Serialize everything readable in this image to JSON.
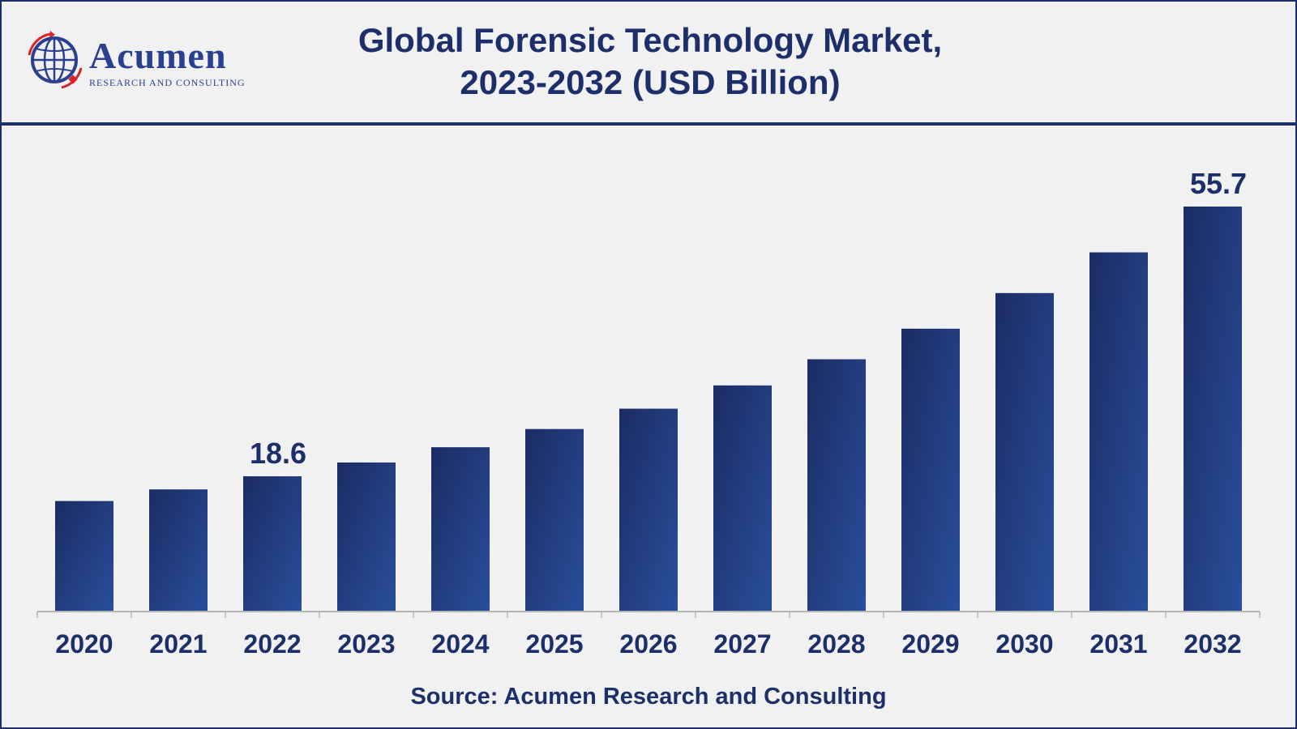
{
  "header": {
    "logo": {
      "name": "Acumen",
      "tagline": "RESEARCH AND CONSULTING",
      "icon": "globe-arrows-logo-icon"
    },
    "title_line1": "Global Forensic Technology Market,",
    "title_line2": "2023-2032 (USD Billion)"
  },
  "source": "Source: Acumen Research and Consulting",
  "colors": {
    "bar_top": "#1b2c63",
    "bar_bottom": "#2a4e9c",
    "text": "#1c2f6b",
    "background": "#f1f1f1",
    "axis": "#b5b5b5"
  },
  "chart_data": {
    "type": "bar",
    "title": "Global Forensic Technology Market, 2023-2032 (USD Billion)",
    "xlabel": "",
    "ylabel": "",
    "categories": [
      "2020",
      "2021",
      "2022",
      "2023",
      "2024",
      "2025",
      "2026",
      "2027",
      "2028",
      "2029",
      "2030",
      "2031",
      "2032"
    ],
    "values": [
      15.2,
      16.8,
      18.6,
      20.5,
      22.6,
      25.1,
      27.9,
      31.1,
      34.7,
      38.9,
      43.8,
      49.4,
      55.7
    ],
    "data_labels": {
      "2022": "18.6",
      "2032": "55.7"
    },
    "ylim": [
      0,
      60
    ],
    "grid": false,
    "legend": "none"
  }
}
